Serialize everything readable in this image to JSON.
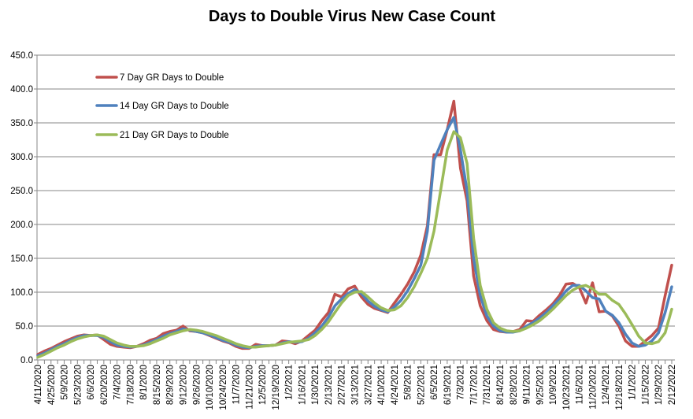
{
  "chart_data": {
    "type": "line",
    "title": "Days to Double Virus New Case Count",
    "xlabel": "",
    "ylabel": "",
    "ylim": [
      0,
      450
    ],
    "yticks": [
      "0.0",
      "50.0",
      "100.0",
      "150.0",
      "200.0",
      "250.0",
      "300.0",
      "350.0",
      "400.0",
      "450.0"
    ],
    "grid": true,
    "legend_placement": "top-left",
    "x_tick_labels": [
      "4/11/2020",
      "4/25/2020",
      "5/9/2020",
      "5/23/2020",
      "6/6/2020",
      "6/20/2020",
      "7/4/2020",
      "7/18/2020",
      "8/1/2020",
      "8/15/2020",
      "8/29/2020",
      "9/12/2020",
      "9/26/2020",
      "10/10/2020",
      "10/24/2020",
      "11/7/2020",
      "11/21/2020",
      "12/5/2020",
      "12/19/2020",
      "1/2/2021",
      "1/16/2021",
      "1/30/2021",
      "2/13/2021",
      "2/27/2021",
      "3/13/2021",
      "3/27/2021",
      "4/10/2021",
      "4/24/2021",
      "5/8/2021",
      "5/22/2021",
      "6/5/2021",
      "6/19/2021",
      "7/3/2021",
      "7/17/2021",
      "7/31/2021",
      "8/14/2021",
      "8/28/2021",
      "9/11/2021",
      "9/25/2021",
      "10/9/2021",
      "10/23/2021",
      "11/6/2021",
      "11/20/2021",
      "12/4/2021",
      "12/18/2021",
      "1/1/2022",
      "1/15/2022",
      "1/29/2022",
      "2/12/2022"
    ],
    "x_frequency": "weekly",
    "series": [
      {
        "name": "7 Day GR Days to Double",
        "color": "#c0504d",
        "values": [
          8,
          13,
          17,
          22,
          27,
          31,
          35,
          37,
          36,
          37,
          30,
          23,
          20,
          19,
          18,
          20,
          24,
          29,
          32,
          39,
          42,
          44,
          50,
          43,
          42,
          40,
          36,
          32,
          28,
          25,
          20,
          17,
          17,
          23,
          21,
          21,
          22,
          28,
          27,
          24,
          28,
          36,
          44,
          58,
          70,
          97,
          93,
          105,
          109,
          93,
          82,
          76,
          73,
          70,
          84,
          97,
          112,
          130,
          155,
          198,
          303,
          303,
          340,
          382,
          283,
          235,
          124,
          80,
          58,
          45,
          42,
          41,
          42,
          45,
          58,
          57,
          66,
          74,
          83,
          95,
          112,
          113,
          107,
          84,
          114,
          71,
          72,
          65,
          50,
          28,
          20,
          20,
          28,
          36,
          47,
          95,
          140
        ]
      },
      {
        "name": "14 Day GR Days to Double",
        "color": "#4f81bd",
        "values": [
          6,
          10,
          15,
          20,
          24,
          29,
          33,
          36,
          36,
          36,
          33,
          27,
          22,
          20,
          19,
          20,
          22,
          26,
          30,
          35,
          39,
          42,
          46,
          44,
          42,
          40,
          37,
          33,
          29,
          26,
          22,
          19,
          18,
          20,
          21,
          21,
          22,
          25,
          27,
          26,
          27,
          32,
          40,
          50,
          63,
          80,
          90,
          98,
          104,
          98,
          87,
          79,
          74,
          71,
          78,
          88,
          102,
          120,
          140,
          190,
          295,
          318,
          340,
          358,
          310,
          250,
          150,
          95,
          65,
          50,
          43,
          41,
          41,
          43,
          50,
          55,
          62,
          70,
          80,
          90,
          102,
          110,
          110,
          102,
          92,
          90,
          72,
          66,
          55,
          38,
          25,
          20,
          22,
          28,
          40,
          70,
          108
        ]
      },
      {
        "name": "21 Day GR Days to Double",
        "color": "#9bbb59",
        "values": [
          4,
          8,
          13,
          18,
          22,
          27,
          31,
          34,
          36,
          37,
          35,
          30,
          25,
          22,
          20,
          20,
          21,
          24,
          28,
          32,
          37,
          40,
          43,
          45,
          44,
          42,
          39,
          36,
          32,
          28,
          24,
          21,
          19,
          19,
          20,
          21,
          22,
          24,
          26,
          27,
          28,
          30,
          36,
          45,
          56,
          70,
          84,
          95,
          100,
          101,
          93,
          84,
          77,
          73,
          74,
          80,
          92,
          108,
          128,
          150,
          190,
          250,
          310,
          337,
          328,
          290,
          180,
          110,
          75,
          55,
          47,
          43,
          42,
          43,
          47,
          52,
          58,
          66,
          75,
          85,
          95,
          103,
          108,
          110,
          105,
          97,
          97,
          88,
          82,
          68,
          52,
          35,
          25,
          24,
          27,
          40,
          75
        ]
      }
    ]
  }
}
